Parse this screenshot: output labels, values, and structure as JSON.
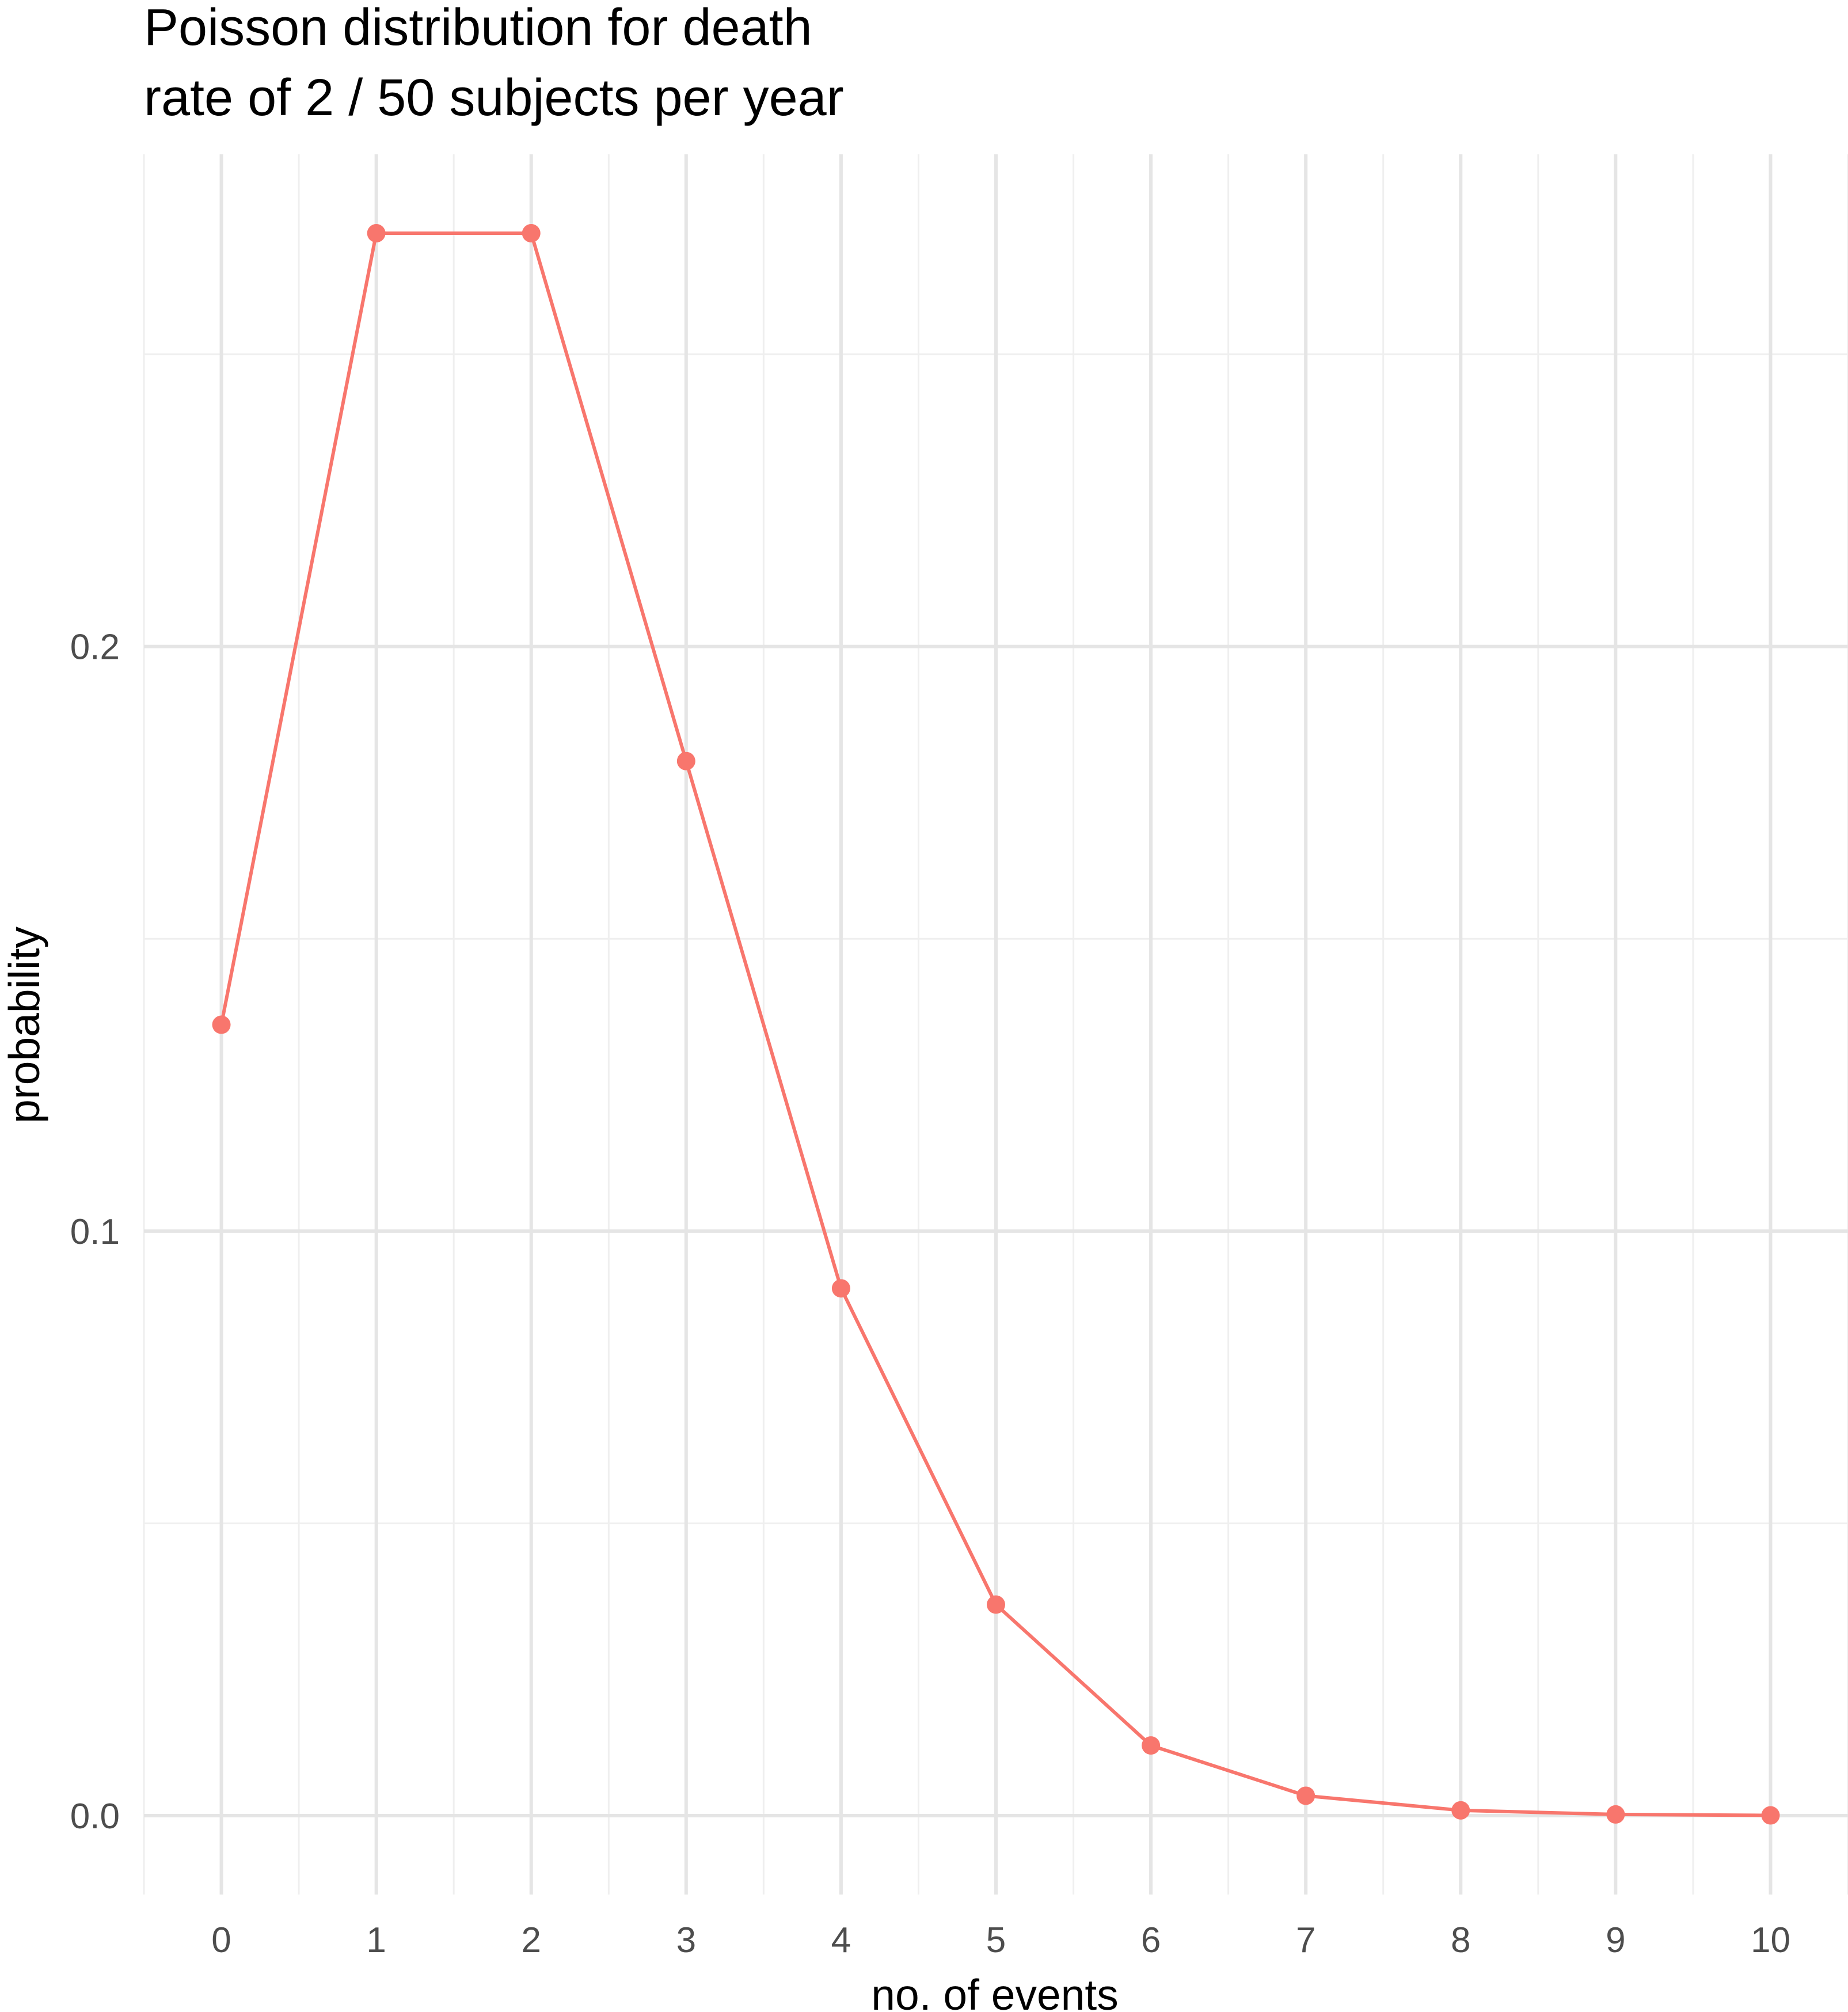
{
  "chart_data": {
    "type": "line",
    "title_lines": [
      "Poisson distribution for death",
      "rate of 2 / 50 subjects per year"
    ],
    "xlabel": "no. of events",
    "ylabel": "probability",
    "x": [
      0,
      1,
      2,
      3,
      4,
      5,
      6,
      7,
      8,
      9,
      10
    ],
    "series": [
      {
        "values": [
          0.1353,
          0.2707,
          0.2707,
          0.1804,
          0.0902,
          0.0361,
          0.012,
          0.0034,
          0.0009,
          0.0002,
          4e-05
        ]
      }
    ],
    "xlim": [
      -0.5,
      10.5
    ],
    "ylim": [
      -0.0135,
      0.2842
    ],
    "x_ticks": [
      "0",
      "1",
      "2",
      "3",
      "4",
      "5",
      "6",
      "7",
      "8",
      "9",
      "10"
    ],
    "y_ticks": [
      {
        "value": 0.0,
        "label": "0.0"
      },
      {
        "value": 0.1,
        "label": "0.1"
      },
      {
        "value": 0.2,
        "label": "0.2"
      }
    ],
    "y_minor_ticks": [
      0.05,
      0.15,
      0.25
    ],
    "grid": true,
    "colors": {
      "series": "#F8766D",
      "grid_major": "#E5E5E5",
      "grid_minor": "#EFEFEF",
      "tick_text": "#4D4D4D",
      "text": "#000000"
    }
  }
}
